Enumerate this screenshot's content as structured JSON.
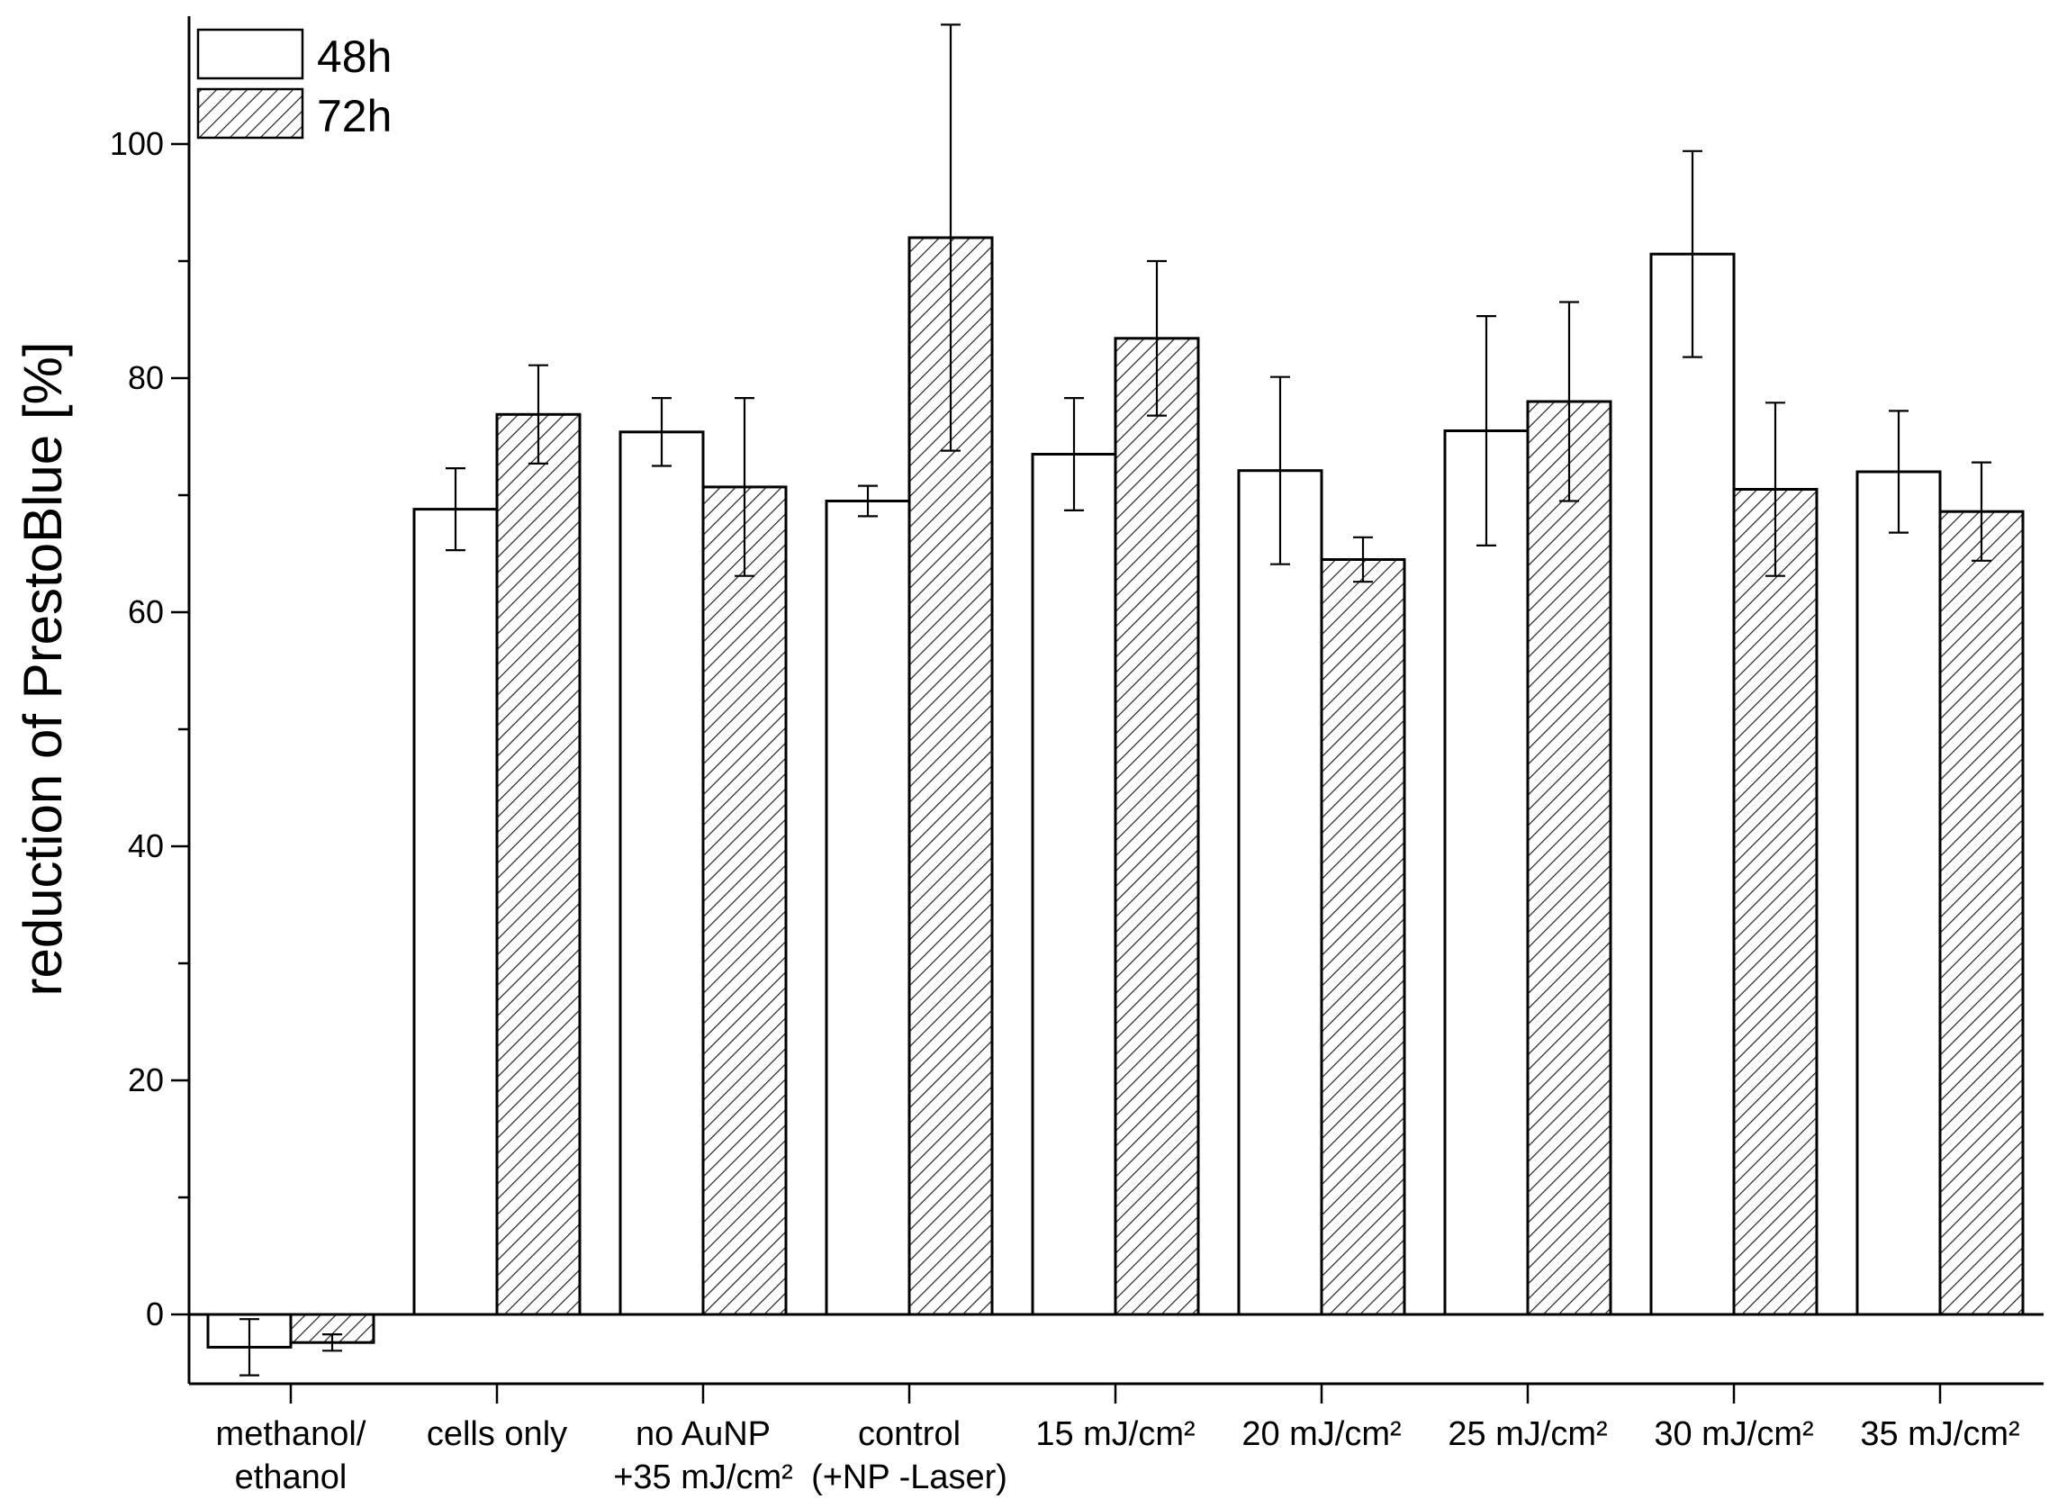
{
  "chart_data": {
    "type": "bar",
    "title": "",
    "xlabel": "",
    "ylabel": "reduction of PrestoBlue [%]",
    "ylim": [
      -6,
      111
    ],
    "yticks": [
      0,
      20,
      40,
      60,
      80,
      100
    ],
    "y_minor_step": 10,
    "grid": false,
    "legend_position": "top-left",
    "categories": [
      [
        "methanol/",
        "ethanol"
      ],
      [
        "cells only"
      ],
      [
        "no AuNP",
        "+35 mJ/cm²"
      ],
      [
        "control",
        "(+NP -Laser)"
      ],
      [
        "15 mJ/cm²"
      ],
      [
        "20 mJ/cm²"
      ],
      [
        "25 mJ/cm²"
      ],
      [
        "30 mJ/cm²"
      ],
      [
        "35 mJ/cm²"
      ]
    ],
    "series": [
      {
        "name": "48h",
        "pattern": "none",
        "values": [
          -2.8,
          68.8,
          75.4,
          69.5,
          73.5,
          72.1,
          75.5,
          90.6,
          72.0
        ],
        "errors": [
          2.4,
          3.5,
          2.9,
          1.3,
          4.8,
          8.0,
          9.8,
          8.8,
          5.2
        ]
      },
      {
        "name": "72h",
        "pattern": "hatched",
        "values": [
          -2.4,
          76.9,
          70.7,
          92.0,
          83.4,
          64.5,
          78.0,
          70.5,
          68.6
        ],
        "errors": [
          0.7,
          4.2,
          7.6,
          18.2,
          6.6,
          1.9,
          8.5,
          7.4,
          4.2
        ]
      }
    ]
  }
}
